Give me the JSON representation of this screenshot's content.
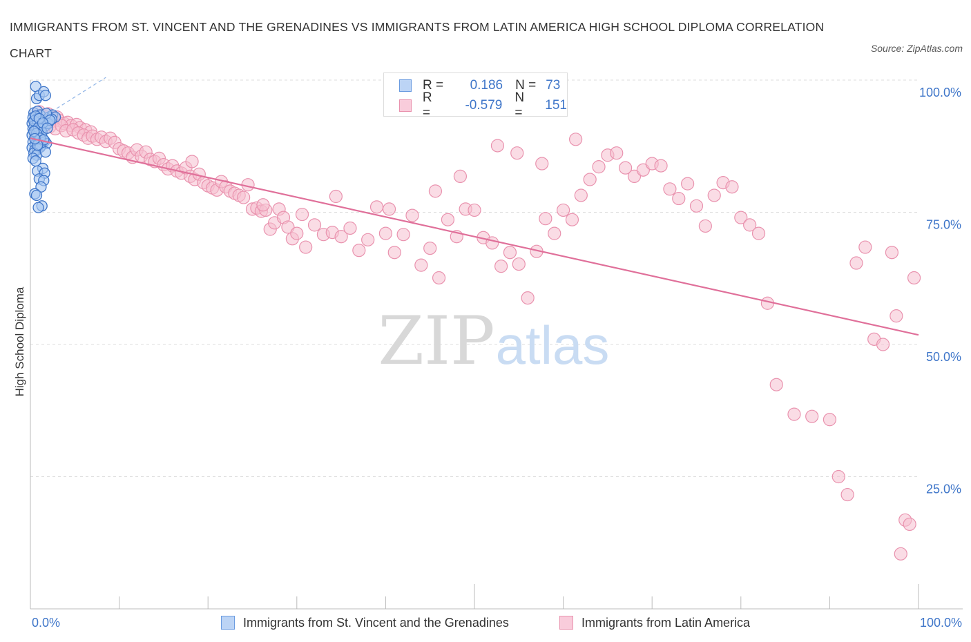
{
  "title": "IMMIGRANTS FROM ST. VINCENT AND THE GRENADINES VS IMMIGRANTS FROM LATIN AMERICA HIGH SCHOOL DIPLOMA CORRELATION CHART",
  "source": "Source: ZipAtlas.com",
  "watermark": {
    "zip": "ZIP",
    "atlas": "atlas"
  },
  "legend": {
    "r_label": "R =",
    "n_label": "N =",
    "rows": [
      {
        "r": "0.186",
        "n": "73"
      },
      {
        "r": "-0.579",
        "n": "151"
      }
    ]
  },
  "colors": {
    "blue_fill": "#a9c8f2",
    "blue_stroke": "#6a9be0",
    "blue_dot": "#3f76c9",
    "pink_fill": "#f6bfd0",
    "pink_stroke": "#e992ae",
    "pink_line": "#e0709a",
    "axis_text": "#3f76c9",
    "grid": "#dddddd"
  },
  "chart_data": {
    "type": "scatter",
    "xlabel": "",
    "ylabel": "High School Diploma",
    "xlim": [
      0,
      100
    ],
    "ylim": [
      0,
      100
    ],
    "x_tick_labels": [
      "0.0%",
      "100.0%"
    ],
    "y_ticks": [
      {
        "value": 100,
        "label": "100.0%"
      },
      {
        "value": 75,
        "label": "75.0%"
      },
      {
        "value": 50,
        "label": "50.0%"
      },
      {
        "value": 25,
        "label": "25.0%"
      }
    ],
    "grid": true,
    "legend_position": "bottom",
    "series": [
      {
        "name": "Immigrants from St. Vincent and the Grenadines",
        "color": "#a9c8f2",
        "trendline": {
          "x": [
            0,
            8.5
          ],
          "y": [
            91.5,
            100.5
          ],
          "style": "dashed"
        },
        "points": [
          [
            0.6,
            98.8
          ],
          [
            0.7,
            96.5
          ],
          [
            1.0,
            97.1
          ],
          [
            1.5,
            97.8
          ],
          [
            1.7,
            97.1
          ],
          [
            0.4,
            93.8
          ],
          [
            0.8,
            94.1
          ],
          [
            1.1,
            93.4
          ],
          [
            0.3,
            92.9
          ],
          [
            0.6,
            92.5
          ],
          [
            0.9,
            92.8
          ],
          [
            1.2,
            92.2
          ],
          [
            1.6,
            92.0
          ],
          [
            2.1,
            93.0
          ],
          [
            2.5,
            93.4
          ],
          [
            2.8,
            93.0
          ],
          [
            0.2,
            91.8
          ],
          [
            0.5,
            91.5
          ],
          [
            0.8,
            91.9
          ],
          [
            1.1,
            91.2
          ],
          [
            1.4,
            91.6
          ],
          [
            1.7,
            91.4
          ],
          [
            0.3,
            90.8
          ],
          [
            0.6,
            90.5
          ],
          [
            0.9,
            90.2
          ],
          [
            1.2,
            90.7
          ],
          [
            0.2,
            89.6
          ],
          [
            0.5,
            89.1
          ],
          [
            0.8,
            89.5
          ],
          [
            1.0,
            88.8
          ],
          [
            1.3,
            89.2
          ],
          [
            1.6,
            88.5
          ],
          [
            0.3,
            88.3
          ],
          [
            0.6,
            87.9
          ],
          [
            0.9,
            88.1
          ],
          [
            1.2,
            87.6
          ],
          [
            1.8,
            88.0
          ],
          [
            0.2,
            87.2
          ],
          [
            0.5,
            86.8
          ],
          [
            0.8,
            86.9
          ],
          [
            1.1,
            87.3
          ],
          [
            0.4,
            86.2
          ],
          [
            0.7,
            85.8
          ],
          [
            1.7,
            86.4
          ],
          [
            0.3,
            85.2
          ],
          [
            0.6,
            84.7
          ],
          [
            1.4,
            83.3
          ],
          [
            0.8,
            82.8
          ],
          [
            1.6,
            82.4
          ],
          [
            1.0,
            81.3
          ],
          [
            1.5,
            81.0
          ],
          [
            1.2,
            79.8
          ],
          [
            0.5,
            78.5
          ],
          [
            0.7,
            78.2
          ],
          [
            1.3,
            76.2
          ],
          [
            0.9,
            75.9
          ],
          [
            0.4,
            92.3
          ],
          [
            0.9,
            91.0
          ],
          [
            1.3,
            90.1
          ],
          [
            2.0,
            91.8
          ],
          [
            2.4,
            92.6
          ],
          [
            0.7,
            89.9
          ],
          [
            1.1,
            89.0
          ],
          [
            1.5,
            88.7
          ],
          [
            0.6,
            93.2
          ],
          [
            1.8,
            93.7
          ],
          [
            2.2,
            92.4
          ],
          [
            0.4,
            90.3
          ],
          [
            1.0,
            92.7
          ],
          [
            0.8,
            87.7
          ],
          [
            1.4,
            91.9
          ],
          [
            0.5,
            88.9
          ],
          [
            1.9,
            90.9
          ]
        ]
      },
      {
        "name": "Immigrants from Latin America",
        "color": "#f6bfd0",
        "trendline": {
          "x": [
            0,
            100
          ],
          "y": [
            89.0,
            51.8
          ],
          "style": "solid"
        },
        "points": [
          [
            1.0,
            94.0
          ],
          [
            1.5,
            93.2
          ],
          [
            2.0,
            93.6
          ],
          [
            2.5,
            92.8
          ],
          [
            3.0,
            93.0
          ],
          [
            1.2,
            92.0
          ],
          [
            1.8,
            91.6
          ],
          [
            2.4,
            92.2
          ],
          [
            3.2,
            92.4
          ],
          [
            3.8,
            91.8
          ],
          [
            4.2,
            92.0
          ],
          [
            4.6,
            91.4
          ],
          [
            5.2,
            91.6
          ],
          [
            5.6,
            91.0
          ],
          [
            6.2,
            90.6
          ],
          [
            6.8,
            90.2
          ],
          [
            2.2,
            91.2
          ],
          [
            2.8,
            90.8
          ],
          [
            3.5,
            91.4
          ],
          [
            4.0,
            90.4
          ],
          [
            4.8,
            90.6
          ],
          [
            5.4,
            90.0
          ],
          [
            6.0,
            89.6
          ],
          [
            6.5,
            89.0
          ],
          [
            7.0,
            89.4
          ],
          [
            7.5,
            88.8
          ],
          [
            8.0,
            89.2
          ],
          [
            8.5,
            88.4
          ],
          [
            9.0,
            89.0
          ],
          [
            9.5,
            88.2
          ],
          [
            10.0,
            87.0
          ],
          [
            10.5,
            86.6
          ],
          [
            11.0,
            86.2
          ],
          [
            11.5,
            85.4
          ],
          [
            12.0,
            86.8
          ],
          [
            12.5,
            85.6
          ],
          [
            13.0,
            86.4
          ],
          [
            13.5,
            85.0
          ],
          [
            14.0,
            84.6
          ],
          [
            14.5,
            85.2
          ],
          [
            15.0,
            84.0
          ],
          [
            15.5,
            83.2
          ],
          [
            16.0,
            83.8
          ],
          [
            16.5,
            82.8
          ],
          [
            17.0,
            82.4
          ],
          [
            17.5,
            83.4
          ],
          [
            18.0,
            81.8
          ],
          [
            18.5,
            81.2
          ],
          [
            19.0,
            82.2
          ],
          [
            19.5,
            80.6
          ],
          [
            20.0,
            80.0
          ],
          [
            20.5,
            79.6
          ],
          [
            21.0,
            79.2
          ],
          [
            21.5,
            80.8
          ],
          [
            22.0,
            79.8
          ],
          [
            22.5,
            79.0
          ],
          [
            23.0,
            78.6
          ],
          [
            23.5,
            78.2
          ],
          [
            24.0,
            77.8
          ],
          [
            24.5,
            80.2
          ],
          [
            25.0,
            75.6
          ],
          [
            25.5,
            75.8
          ],
          [
            26.0,
            75.2
          ],
          [
            26.5,
            75.4
          ],
          [
            27.0,
            71.8
          ],
          [
            27.5,
            73.0
          ],
          [
            28.0,
            75.6
          ],
          [
            28.5,
            74.0
          ],
          [
            29.0,
            72.2
          ],
          [
            29.5,
            70.0
          ],
          [
            30.0,
            71.0
          ],
          [
            31.0,
            68.4
          ],
          [
            32.0,
            72.6
          ],
          [
            33.0,
            70.8
          ],
          [
            34.0,
            71.2
          ],
          [
            35.0,
            70.4
          ],
          [
            36.0,
            72.0
          ],
          [
            37.0,
            67.8
          ],
          [
            38.0,
            69.8
          ],
          [
            39.0,
            76.0
          ],
          [
            40.0,
            71.0
          ],
          [
            41.0,
            67.4
          ],
          [
            42.0,
            70.8
          ],
          [
            43.0,
            74.4
          ],
          [
            44.0,
            65.0
          ],
          [
            45.0,
            68.2
          ],
          [
            46.0,
            62.6
          ],
          [
            47.0,
            73.6
          ],
          [
            48.0,
            70.4
          ],
          [
            49.0,
            75.6
          ],
          [
            50.0,
            75.4
          ],
          [
            51.0,
            70.2
          ],
          [
            52.0,
            69.2
          ],
          [
            53.0,
            64.8
          ],
          [
            54.0,
            67.4
          ],
          [
            55.0,
            65.2
          ],
          [
            56.0,
            58.8
          ],
          [
            57.0,
            67.6
          ],
          [
            58.0,
            73.8
          ],
          [
            59.0,
            71.0
          ],
          [
            60.0,
            75.4
          ],
          [
            61.0,
            73.6
          ],
          [
            62.0,
            78.2
          ],
          [
            63.0,
            81.2
          ],
          [
            64.0,
            83.6
          ],
          [
            65.0,
            85.8
          ],
          [
            66.0,
            86.2
          ],
          [
            67.0,
            83.4
          ],
          [
            68.0,
            81.8
          ],
          [
            69.0,
            83.0
          ],
          [
            70.0,
            84.2
          ],
          [
            71.0,
            83.8
          ],
          [
            72.0,
            79.4
          ],
          [
            73.0,
            77.6
          ],
          [
            74.0,
            80.4
          ],
          [
            75.0,
            76.2
          ],
          [
            76.0,
            72.4
          ],
          [
            77.0,
            78.2
          ],
          [
            78.0,
            80.6
          ],
          [
            79.0,
            79.8
          ],
          [
            80.0,
            74.0
          ],
          [
            81.0,
            72.6
          ],
          [
            82.0,
            71.0
          ],
          [
            83.0,
            57.8
          ],
          [
            84.0,
            42.4
          ],
          [
            86.0,
            36.8
          ],
          [
            88.0,
            36.4
          ],
          [
            90.0,
            35.8
          ],
          [
            91.0,
            25.0
          ],
          [
            92.0,
            21.6
          ],
          [
            93.0,
            65.4
          ],
          [
            94.0,
            68.4
          ],
          [
            95.0,
            51.0
          ],
          [
            96.0,
            50.0
          ],
          [
            97.0,
            67.4
          ],
          [
            98.0,
            10.4
          ],
          [
            98.5,
            16.8
          ],
          [
            99.0,
            16.0
          ],
          [
            99.5,
            62.6
          ],
          [
            97.5,
            55.4
          ],
          [
            18.2,
            84.6
          ],
          [
            26.2,
            76.4
          ],
          [
            30.6,
            74.6
          ],
          [
            34.4,
            78.0
          ],
          [
            40.4,
            75.6
          ],
          [
            45.6,
            79.0
          ],
          [
            48.4,
            81.8
          ],
          [
            52.6,
            87.6
          ],
          [
            54.8,
            86.2
          ],
          [
            57.6,
            84.2
          ],
          [
            61.4,
            88.8
          ]
        ]
      }
    ]
  }
}
